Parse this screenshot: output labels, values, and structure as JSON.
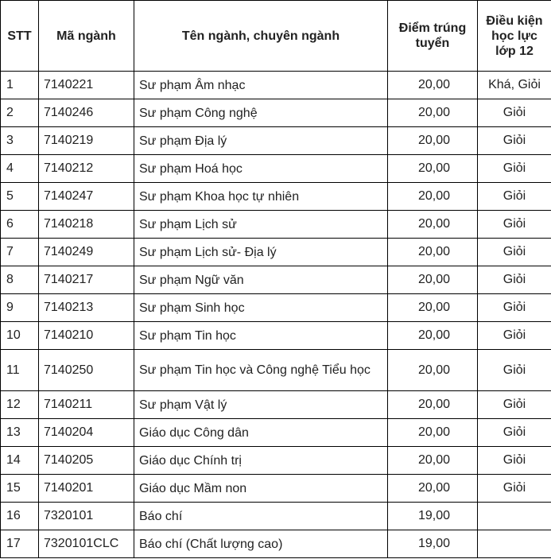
{
  "headers": {
    "stt": "STT",
    "code": "Mã ngành",
    "name": "Tên ngành, chuyên ngành",
    "score": "Điểm trúng tuyển",
    "condition": "Điều kiện học lực lớp 12"
  },
  "rows": [
    {
      "stt": "1",
      "code": "7140221",
      "name": "Sư phạm Âm nhạc",
      "score": "20,00",
      "condition": "Khá, Giỏi"
    },
    {
      "stt": "2",
      "code": "7140246",
      "name": "Sư phạm Công nghệ",
      "score": "20,00",
      "condition": "Giỏi"
    },
    {
      "stt": "3",
      "code": "7140219",
      "name": "Sư phạm Địa lý",
      "score": "20,00",
      "condition": "Giỏi"
    },
    {
      "stt": "4",
      "code": "7140212",
      "name": "Sư phạm Hoá học",
      "score": "20,00",
      "condition": "Giỏi"
    },
    {
      "stt": "5",
      "code": "7140247",
      "name": "Sư phạm Khoa học tự nhiên",
      "score": "20,00",
      "condition": "Giỏi"
    },
    {
      "stt": "6",
      "code": "7140218",
      "name": "Sư phạm Lịch sử",
      "score": "20,00",
      "condition": "Giỏi"
    },
    {
      "stt": "7",
      "code": "7140249",
      "name": "Sư phạm Lịch sử- Địa lý",
      "score": "20,00",
      "condition": "Giỏi"
    },
    {
      "stt": "8",
      "code": "7140217",
      "name": "Sư phạm Ngữ văn",
      "score": "20,00",
      "condition": "Giỏi"
    },
    {
      "stt": "9",
      "code": "7140213",
      "name": "Sư phạm Sinh học",
      "score": "20,00",
      "condition": "Giỏi"
    },
    {
      "stt": "10",
      "code": "7140210",
      "name": "Sư phạm Tin học",
      "score": "20,00",
      "condition": "Giỏi"
    },
    {
      "stt": "11",
      "code": "7140250",
      "name": "Sư phạm Tin học và Công nghệ Tiểu học",
      "score": "20,00",
      "condition": "Giỏi"
    },
    {
      "stt": "12",
      "code": "7140211",
      "name": "Sư phạm Vật lý",
      "score": "20,00",
      "condition": "Giỏi"
    },
    {
      "stt": "13",
      "code": "7140204",
      "name": "Giáo dục Công dân",
      "score": "20,00",
      "condition": "Giỏi"
    },
    {
      "stt": "14",
      "code": "7140205",
      "name": "Giáo dục Chính trị",
      "score": "20,00",
      "condition": "Giỏi"
    },
    {
      "stt": "15",
      "code": "7140201",
      "name": "Giáo dục Mầm non",
      "score": "20,00",
      "condition": "Giỏi"
    },
    {
      "stt": "16",
      "code": "7320101",
      "name": "Báo chí",
      "score": "19,00",
      "condition": ""
    },
    {
      "stt": "17",
      "code": "7320101CLC",
      "name": "Báo chí (Chất lượng cao)",
      "score": "19,00",
      "condition": ""
    }
  ]
}
